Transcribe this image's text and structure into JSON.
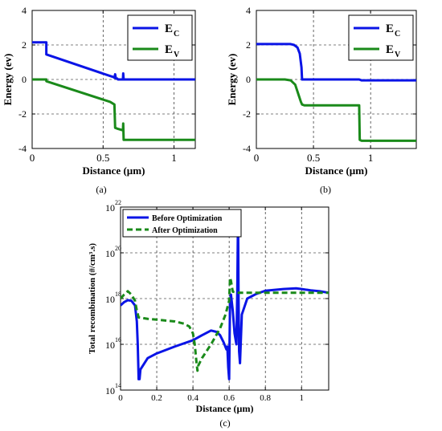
{
  "chart_data": [
    {
      "panel_label": "(a)",
      "type": "line",
      "xlabel": "Distance (µm)",
      "ylabel": "Energy (ev)",
      "xlim": [
        0,
        1.15
      ],
      "ylim": [
        -4,
        4
      ],
      "xticks": [
        0,
        0.5,
        1
      ],
      "xtick_labels": [
        "0",
        "0.5",
        "1"
      ],
      "yticks": [
        -4,
        -2,
        0,
        2,
        4
      ],
      "ytick_labels": [
        "-4",
        "-2",
        "0",
        "2",
        "4"
      ],
      "grid": "dashed",
      "legend_position": "top-right",
      "series": [
        {
          "name": "E",
          "sub": "C",
          "color": "#0a14e6",
          "x": [
            0,
            0.1,
            0.1,
            0.55,
            0.57,
            0.58,
            0.585,
            0.59,
            0.6,
            0.605,
            0.61,
            0.64,
            0.642,
            0.645,
            0.65,
            1.15
          ],
          "y": [
            2.15,
            2.15,
            1.45,
            0.2,
            0.15,
            0.1,
            0.3,
            0.05,
            0.05,
            0.0,
            0.0,
            0.0,
            0.35,
            0.0,
            0.0,
            0.0
          ]
        },
        {
          "name": "E",
          "sub": "V",
          "color": "#1a8a1a",
          "x": [
            0,
            0.1,
            0.1,
            0.55,
            0.58,
            0.585,
            0.6,
            0.62,
            0.64,
            0.642,
            0.645,
            0.65,
            1.15
          ],
          "y": [
            0.0,
            0.0,
            -0.1,
            -1.3,
            -1.45,
            -2.8,
            -2.85,
            -2.9,
            -2.95,
            -2.55,
            -3.5,
            -3.5,
            -3.5
          ]
        }
      ]
    },
    {
      "panel_label": "(b)",
      "type": "line",
      "xlabel": "Distance (µm)",
      "ylabel": "Energy (ev)",
      "xlim": [
        0,
        1.4
      ],
      "ylim": [
        -4,
        4
      ],
      "xticks": [
        0,
        0.5,
        1
      ],
      "xtick_labels": [
        "0",
        "0.5",
        "1"
      ],
      "yticks": [
        -4,
        -2,
        0,
        2,
        4
      ],
      "ytick_labels": [
        "-4",
        "-2",
        "0",
        "2",
        "4"
      ],
      "grid": "dashed",
      "legend_position": "top-right",
      "series": [
        {
          "name": "E",
          "sub": "C",
          "color": "#0a14e6",
          "x": [
            0,
            0.3,
            0.33,
            0.36,
            0.38,
            0.395,
            0.4,
            0.42,
            0.9,
            0.92,
            1.4
          ],
          "y": [
            2.05,
            2.05,
            2.0,
            1.85,
            1.5,
            0.7,
            0.0,
            0.0,
            0.0,
            -0.05,
            -0.05
          ]
        },
        {
          "name": "E",
          "sub": "V",
          "color": "#1a8a1a",
          "x": [
            0,
            0.25,
            0.3,
            0.34,
            0.37,
            0.39,
            0.4,
            0.42,
            0.9,
            0.905,
            0.92,
            1.4
          ],
          "y": [
            0.0,
            0.0,
            -0.05,
            -0.3,
            -0.9,
            -1.3,
            -1.45,
            -1.5,
            -1.5,
            -3.5,
            -3.55,
            -3.55
          ]
        }
      ]
    },
    {
      "panel_label": "(c)",
      "type": "line",
      "xlabel": "Distance (µm)",
      "ylabel": "Total recombination (#/cm³.s)",
      "log_y": true,
      "xlim": [
        0,
        1.15
      ],
      "ylim": [
        100000000000000.0,
        1e+22
      ],
      "xticks": [
        0,
        0.2,
        0.4,
        0.6,
        0.8,
        1
      ],
      "xtick_labels": [
        "0",
        "0.2",
        "0.4",
        "0.6",
        "0.8",
        "1"
      ],
      "ytick_base": "10",
      "ytick_exponents": [
        "14",
        "16",
        "18",
        "20",
        "22"
      ],
      "grid": "dashed",
      "legend_position": "top-left",
      "series": [
        {
          "name": "Before Optimization",
          "style": "solid",
          "color": "#0a14e6",
          "x": [
            0,
            0.02,
            0.04,
            0.06,
            0.08,
            0.09,
            0.095,
            0.1,
            0.105,
            0.11,
            0.15,
            0.2,
            0.3,
            0.4,
            0.45,
            0.5,
            0.53,
            0.55,
            0.57,
            0.585,
            0.59,
            0.595,
            0.6,
            0.605,
            0.61,
            0.62,
            0.63,
            0.64,
            0.645,
            0.648,
            0.65,
            0.652,
            0.655,
            0.66,
            0.67,
            0.7,
            0.75,
            0.8,
            0.9,
            0.97,
            1.0,
            1.05,
            1.1,
            1.15
          ],
          "y": [
            5e+17,
            7e+17,
            8.5e+17,
            8e+17,
            5e+17,
            1e+17,
            1e+16,
            300000000000000.0,
            300000000000000.0,
            800000000000000.0,
            2500000000000000.0,
            4000000000000000.0,
            8000000000000000.0,
            1.5e+16,
            2.5e+16,
            4e+16,
            3.5e+16,
            2.5e+16,
            1.2e+16,
            6000000000000000.0,
            8000000000000000.0,
            1000000000000000.0,
            300000000000000.0,
            8e+17,
            1.5e+18,
            3e+17,
            3e+16,
            1e+16,
            2e+18,
            5e+20,
            5e+20,
            1e+18,
            5000000000000000.0,
            1500000000000000.0,
            2e+17,
            1e+18,
            1.6e+18,
            2.2e+18,
            2.6e+18,
            2.8e+18,
            2.6e+18,
            2.3e+18,
            2.1e+18,
            1.8e+18
          ]
        },
        {
          "name": "After Optimization",
          "style": "dashed",
          "color": "#1a8a1a",
          "x": [
            0,
            0.02,
            0.04,
            0.06,
            0.08,
            0.09,
            0.1,
            0.15,
            0.2,
            0.3,
            0.35,
            0.38,
            0.4,
            0.41,
            0.42,
            0.425,
            0.43,
            0.45,
            0.5,
            0.55,
            0.58,
            0.6,
            0.605,
            0.61,
            0.62,
            0.65,
            0.7,
            0.8,
            1.0,
            1.15
          ],
          "y": [
            1e+18,
            1.5e+18,
            2.1e+18,
            1.5e+18,
            8e+17,
            3e+17,
            1.5e+17,
            1.3e+17,
            1.2e+17,
            1e+17,
            8e+16,
            6e+16,
            3e+16,
            1e+16,
            1500000000000000.0,
            700000000000000.0,
            1200000000000000.0,
            2500000000000000.0,
            1e+16,
            5e+16,
            2e+17,
            8e+17,
            8e+18,
            6e+18,
            2e+18,
            1.8e+18,
            1.8e+18,
            1.8e+18,
            1.8e+18,
            1.8e+18
          ]
        }
      ]
    }
  ]
}
